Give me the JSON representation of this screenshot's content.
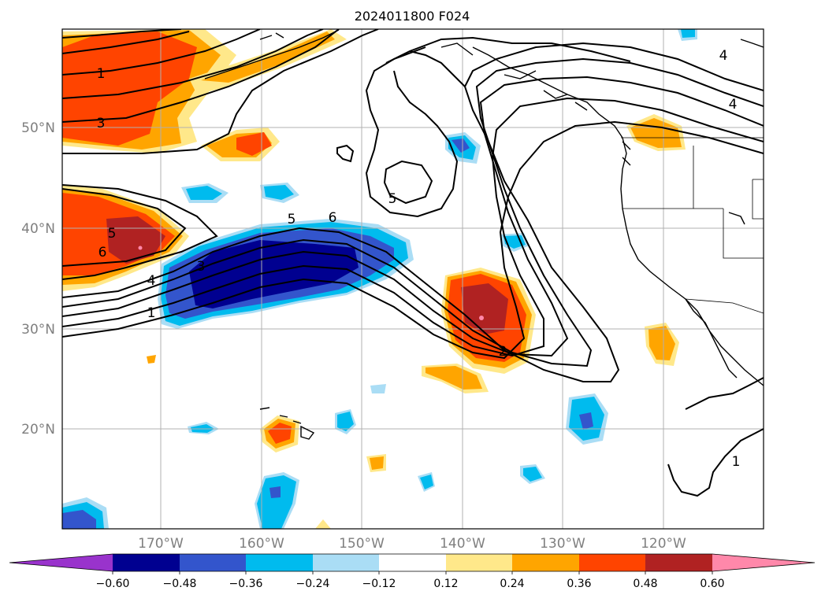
{
  "title": "2024011800 F024",
  "lat_labels": [
    "50°N",
    "40°N",
    "30°N",
    "20°N"
  ],
  "lon_labels": [
    "170°W",
    "160°W",
    "150°W",
    "140°W",
    "130°W",
    "120°W"
  ],
  "colorbar": {
    "colors": [
      "#9933cc",
      "#000090",
      "#3355cc",
      "#00bbee",
      "#aaddf5",
      "#ffffff",
      "#ffe88a",
      "#ffa500",
      "#ff4400",
      "#b02222",
      "#ff88aa"
    ],
    "ticks": [
      "−0.60",
      "−0.48",
      "−0.36",
      "−0.24",
      "−0.12",
      "0.12",
      "0.24",
      "0.36",
      "0.48",
      "0.60"
    ]
  },
  "contour_labels": [
    "1",
    "3",
    "5",
    "6",
    "4",
    "3",
    "1",
    "5",
    "6",
    "5",
    "2",
    "4",
    "4",
    "1"
  ]
}
